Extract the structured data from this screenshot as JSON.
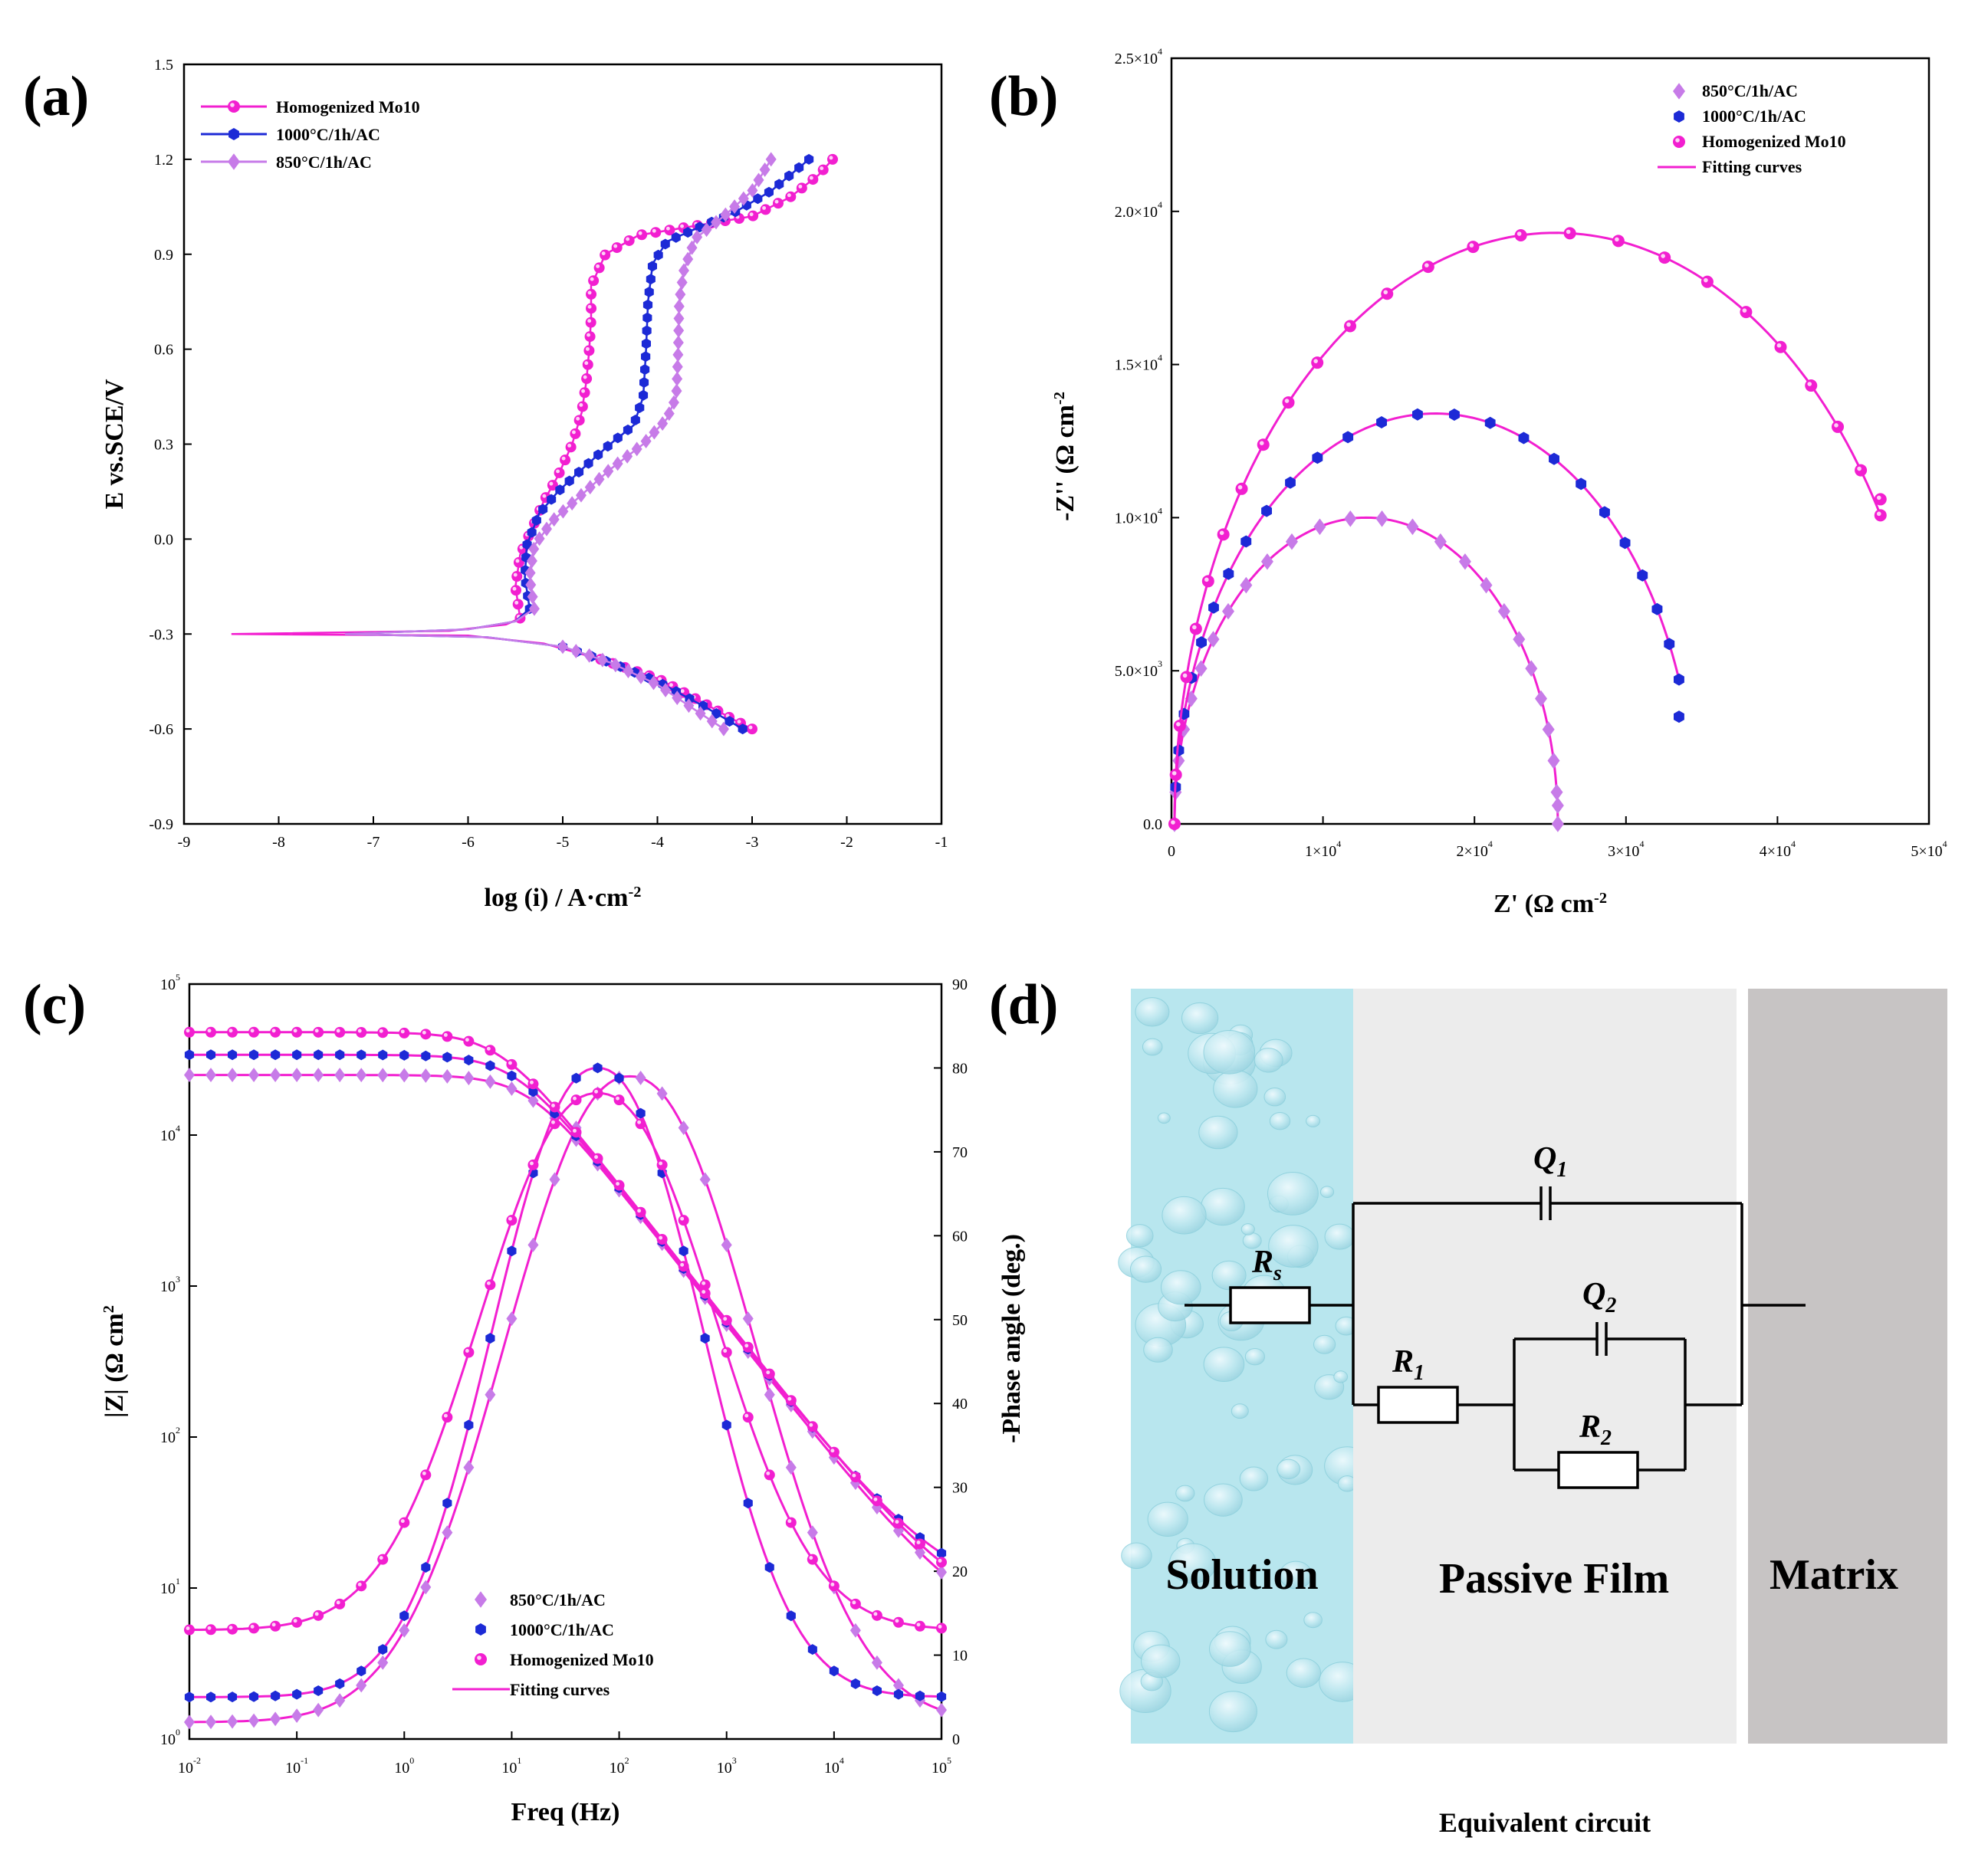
{
  "colors": {
    "homogenized": "#f21fd0",
    "c1000": "#1c2ad6",
    "c850": "#c77be8",
    "fit": "#f21fd0",
    "solution": "#b8e6ee",
    "film": "#ececec",
    "matrix": "#c7c4c4"
  },
  "chart_data": [
    {
      "panel": "(a)",
      "type": "line",
      "xlabel": "log (i) / A·cm",
      "xlabel_sup": "-2",
      "ylabel": "E vs.SCE/V",
      "xlim": [
        -9,
        -1
      ],
      "ylim": [
        -0.9,
        1.5
      ],
      "xticks": [
        "-9",
        "-8",
        "-7",
        "-6",
        "-5",
        "-4",
        "-3",
        "-2",
        "-1"
      ],
      "yticks": [
        "-0.9",
        "-0.6",
        "-0.3",
        "0.0",
        "0.3",
        "0.6",
        "0.9",
        "1.2",
        "1.5"
      ],
      "legend": [
        "Homogenized Mo10",
        "1000°C/1h/AC",
        "850°C/1h/AC"
      ],
      "series": [
        {
          "name": "Homogenized Mo10",
          "color_key": "homogenized",
          "marker": "circle",
          "anodic": [
            [
              -5.45,
              -0.25
            ],
            [
              -5.5,
              -0.15
            ],
            [
              -5.45,
              -0.05
            ],
            [
              -5.3,
              0.05
            ],
            [
              -5.2,
              0.12
            ],
            [
              -5.05,
              0.2
            ],
            [
              -4.9,
              0.3
            ],
            [
              -4.8,
              0.4
            ],
            [
              -4.75,
              0.5
            ],
            [
              -4.72,
              0.6
            ],
            [
              -4.7,
              0.7
            ],
            [
              -4.7,
              0.8
            ],
            [
              -4.55,
              0.9
            ],
            [
              -4.2,
              0.96
            ],
            [
              -3.6,
              0.99
            ],
            [
              -3.0,
              1.02
            ],
            [
              -2.6,
              1.08
            ],
            [
              -2.3,
              1.15
            ],
            [
              -2.15,
              1.2
            ]
          ],
          "cathodic": [
            [
              -5.45,
              -0.25
            ],
            [
              -5.6,
              -0.27
            ],
            [
              -6.2,
              -0.29
            ],
            [
              -8.5,
              -0.3
            ],
            [
              -6.0,
              -0.305
            ],
            [
              -5.2,
              -0.33
            ],
            [
              -4.6,
              -0.38
            ],
            [
              -4.0,
              -0.44
            ],
            [
              -3.5,
              -0.52
            ],
            [
              -3.2,
              -0.57
            ],
            [
              -3.0,
              -0.6
            ]
          ]
        },
        {
          "name": "1000°C/1h/AC",
          "color_key": "c1000",
          "marker": "hexagon",
          "anodic": [
            [
              -5.35,
              -0.22
            ],
            [
              -5.4,
              -0.12
            ],
            [
              -5.38,
              -0.02
            ],
            [
              -5.25,
              0.08
            ],
            [
              -5.05,
              0.15
            ],
            [
              -4.8,
              0.22
            ],
            [
              -4.5,
              0.3
            ],
            [
              -4.25,
              0.36
            ],
            [
              -4.15,
              0.45
            ],
            [
              -4.12,
              0.6
            ],
            [
              -4.1,
              0.75
            ],
            [
              -4.05,
              0.87
            ],
            [
              -3.9,
              0.94
            ],
            [
              -3.6,
              0.98
            ],
            [
              -3.2,
              1.03
            ],
            [
              -2.8,
              1.1
            ],
            [
              -2.4,
              1.2
            ]
          ],
          "cathodic": [
            [
              -5.35,
              -0.22
            ],
            [
              -5.5,
              -0.26
            ],
            [
              -6.0,
              -0.285
            ],
            [
              -7.3,
              -0.3
            ],
            [
              -5.8,
              -0.31
            ],
            [
              -5.0,
              -0.34
            ],
            [
              -4.5,
              -0.39
            ],
            [
              -4.0,
              -0.45
            ],
            [
              -3.5,
              -0.53
            ],
            [
              -3.1,
              -0.6
            ]
          ]
        },
        {
          "name": "850°C/1h/AC",
          "color_key": "c850",
          "marker": "diamond",
          "anodic": [
            [
              -5.3,
              -0.22
            ],
            [
              -5.35,
              -0.12
            ],
            [
              -5.3,
              -0.02
            ],
            [
              -5.1,
              0.06
            ],
            [
              -4.8,
              0.14
            ],
            [
              -4.5,
              0.22
            ],
            [
              -4.15,
              0.3
            ],
            [
              -3.9,
              0.38
            ],
            [
              -3.8,
              0.45
            ],
            [
              -3.78,
              0.6
            ],
            [
              -3.77,
              0.75
            ],
            [
              -3.72,
              0.85
            ],
            [
              -3.6,
              0.95
            ],
            [
              -3.3,
              1.02
            ],
            [
              -3.0,
              1.1
            ],
            [
              -2.8,
              1.2
            ]
          ],
          "cathodic": [
            [
              -5.3,
              -0.22
            ],
            [
              -5.5,
              -0.26
            ],
            [
              -6.0,
              -0.285
            ],
            [
              -7.3,
              -0.3
            ],
            [
              -5.8,
              -0.31
            ],
            [
              -5.0,
              -0.34
            ],
            [
              -4.5,
              -0.39
            ],
            [
              -4.0,
              -0.46
            ],
            [
              -3.6,
              -0.54
            ],
            [
              -3.3,
              -0.6
            ]
          ]
        }
      ]
    },
    {
      "panel": "(b)",
      "type": "scatter",
      "xlabel": "Z' (Ω cm",
      "xlabel_sup": "-2",
      "ylabel": "-Z'' (Ω cm",
      "ylabel_sup": "-2",
      "xlim": [
        0,
        50000
      ],
      "ylim": [
        0,
        25000
      ],
      "xticks": [
        {
          "v": 0,
          "m": "0",
          "e": ""
        },
        {
          "v": 10000,
          "m": "1×10",
          "e": "4"
        },
        {
          "v": 20000,
          "m": "2×10",
          "e": "4"
        },
        {
          "v": 30000,
          "m": "3×10",
          "e": "4"
        },
        {
          "v": 40000,
          "m": "4×10",
          "e": "4"
        },
        {
          "v": 50000,
          "m": "5×10",
          "e": "4"
        }
      ],
      "yticks": [
        {
          "v": 0,
          "m": "0.0",
          "e": ""
        },
        {
          "v": 5000,
          "m": "5.0×10",
          "e": "3"
        },
        {
          "v": 10000,
          "m": "1.0×10",
          "e": "4"
        },
        {
          "v": 15000,
          "m": "1.5×10",
          "e": "4"
        },
        {
          "v": 20000,
          "m": "2.0×10",
          "e": "4"
        },
        {
          "v": 25000,
          "m": "2.5×10",
          "e": "4"
        }
      ],
      "legend": [
        "850°C/1h/AC",
        "1000°C/1h/AC",
        "Homogenized Mo10",
        "Fitting curves"
      ],
      "series": [
        {
          "name": "850°C/1h/AC",
          "color_key": "c850",
          "marker": "diamond",
          "Rs": 200,
          "R": 25500,
          "peak": 10000,
          "end_x": 25500,
          "end_y": 600
        },
        {
          "name": "1000°C/1h/AC",
          "color_key": "c1000",
          "marker": "hexagon",
          "Rs": 200,
          "R": 34600,
          "peak": 13400,
          "end_x": 33500,
          "end_y": 3500
        },
        {
          "name": "Homogenized Mo10",
          "color_key": "homogenized",
          "marker": "circle",
          "Rs": 200,
          "R": 50500,
          "peak": 19300,
          "end_x": 46800,
          "end_y": 10600
        }
      ]
    },
    {
      "panel": "(c)",
      "type": "line",
      "xlabel": "Freq (Hz)",
      "ylabel_left": "|Z| (Ω cm",
      "ylabel_left_sup": "2",
      "ylabel_right": "-Phase angle (deg.)",
      "xlim_log10": [
        -2,
        5
      ],
      "ylim_left_log10": [
        0,
        5
      ],
      "ylim_right": [
        0,
        90
      ],
      "xticks": [
        {
          "m": "10",
          "e": "-2"
        },
        {
          "m": "10",
          "e": "-1"
        },
        {
          "m": "10",
          "e": "0"
        },
        {
          "m": "10",
          "e": "1"
        },
        {
          "m": "10",
          "e": "2"
        },
        {
          "m": "10",
          "e": "3"
        },
        {
          "m": "10",
          "e": "4"
        },
        {
          "m": "10",
          "e": "5"
        }
      ],
      "yticks_left": [
        {
          "m": "10",
          "e": "0"
        },
        {
          "m": "10",
          "e": "1"
        },
        {
          "m": "10",
          "e": "2"
        },
        {
          "m": "10",
          "e": "3"
        },
        {
          "m": "10",
          "e": "4"
        },
        {
          "m": "10",
          "e": "5"
        }
      ],
      "yticks_right": [
        "0",
        "10",
        "20",
        "30",
        "40",
        "50",
        "60",
        "70",
        "80",
        "90"
      ],
      "legend": [
        "850°C/1h/AC",
        "1000°C/1h/AC",
        "Homogenized Mo10",
        "Fitting curves"
      ],
      "series": [
        {
          "name": "850°C/1h/AC",
          "color_key": "c850",
          "marker": "diamond",
          "Rs": 4,
          "R1": 25000,
          "alpha": 0.9,
          "phase_max": 79,
          "phase_center_log": 2.1,
          "phase_width": 1.55,
          "phase_low": 2
        },
        {
          "name": "1000°C/1h/AC",
          "color_key": "c1000",
          "marker": "hexagon",
          "Rs": 8,
          "R1": 34000,
          "alpha": 0.9,
          "phase_max": 80,
          "phase_center_log": 1.8,
          "phase_width": 1.3,
          "phase_low": 5
        },
        {
          "name": "Homogenized Mo10",
          "color_key": "homogenized",
          "marker": "circle",
          "Rs": 5.5,
          "R1": 48000,
          "alpha": 0.9,
          "phase_max": 77,
          "phase_center_log": 1.8,
          "phase_width": 1.45,
          "phase_low": 13
        }
      ]
    }
  ],
  "panel_labels": {
    "a": "(a)",
    "b": "(b)",
    "c": "(c)",
    "d": "(d)"
  },
  "circuit": {
    "regions": [
      "Solution",
      "Passive Film",
      "Matrix"
    ],
    "rs": {
      "main": "R",
      "sub": "s"
    },
    "r1": {
      "main": "R",
      "sub": "1"
    },
    "r2": {
      "main": "R",
      "sub": "2"
    },
    "q1": {
      "main": "Q",
      "sub": "1"
    },
    "q2": {
      "main": "Q",
      "sub": "2"
    },
    "caption": "Equivalent circuit"
  }
}
